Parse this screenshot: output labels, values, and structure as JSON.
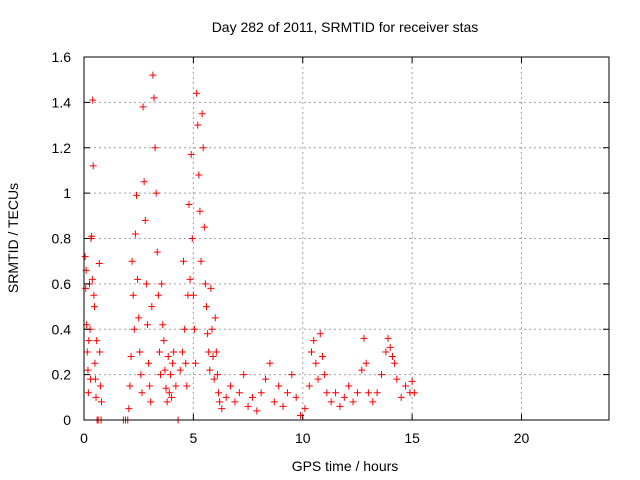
{
  "chart_data": {
    "type": "scatter",
    "title": "Day 282 of 2011, SRMTID for receiver stas",
    "xlabel": "GPS time / hours",
    "ylabel": "SRMTID / TECUs",
    "xlim": [
      0,
      24
    ],
    "ylim": [
      0,
      1.6
    ],
    "xticks": [
      "0",
      "5",
      "10",
      "15",
      "20"
    ],
    "yticks": [
      "0",
      "0.2",
      "0.4",
      "0.6",
      "0.8",
      "1",
      "1.2",
      "1.4",
      "1.6"
    ],
    "xtick_values": [
      0,
      5,
      10,
      15,
      20
    ],
    "ytick_values": [
      0,
      0.2,
      0.4,
      0.6,
      0.8,
      1.0,
      1.2,
      1.4,
      1.6
    ],
    "grid": true,
    "marker": "plus",
    "series_color": "#ff0000",
    "series": [
      {
        "name": "SRMTID",
        "points": [
          [
            0.05,
            0.72
          ],
          [
            0.08,
            0.58
          ],
          [
            0.1,
            0.66
          ],
          [
            0.12,
            0.42
          ],
          [
            0.15,
            0.3
          ],
          [
            0.18,
            0.22
          ],
          [
            0.2,
            0.12
          ],
          [
            0.22,
            0.35
          ],
          [
            0.25,
            0.6
          ],
          [
            0.28,
            0.4
          ],
          [
            0.3,
            0.18
          ],
          [
            0.32,
            0.8
          ],
          [
            0.35,
            0.81
          ],
          [
            0.38,
            0.62
          ],
          [
            0.4,
            1.41
          ],
          [
            0.42,
            1.12
          ],
          [
            0.45,
            0.55
          ],
          [
            0.48,
            0.5
          ],
          [
            0.5,
            0.25
          ],
          [
            0.52,
            0.18
          ],
          [
            0.55,
            0.1
          ],
          [
            0.58,
            0.35
          ],
          [
            0.6,
            0.0
          ],
          [
            0.65,
            0.0
          ],
          [
            0.7,
            0.69
          ],
          [
            0.72,
            0.3
          ],
          [
            0.75,
            0.15
          ],
          [
            0.78,
            0.0
          ],
          [
            0.8,
            0.08
          ],
          [
            1.8,
            0.0
          ],
          [
            1.9,
            0.0
          ],
          [
            2.0,
            0.0
          ],
          [
            2.05,
            0.05
          ],
          [
            2.1,
            0.15
          ],
          [
            2.15,
            0.28
          ],
          [
            2.2,
            0.7
          ],
          [
            2.25,
            0.55
          ],
          [
            2.3,
            0.4
          ],
          [
            2.35,
            0.82
          ],
          [
            2.4,
            0.99
          ],
          [
            2.45,
            0.62
          ],
          [
            2.5,
            0.45
          ],
          [
            2.55,
            0.3
          ],
          [
            2.6,
            0.2
          ],
          [
            2.65,
            0.12
          ],
          [
            2.7,
            1.38
          ],
          [
            2.75,
            1.05
          ],
          [
            2.8,
            0.88
          ],
          [
            2.85,
            0.6
          ],
          [
            2.9,
            0.42
          ],
          [
            2.95,
            0.25
          ],
          [
            3.0,
            0.15
          ],
          [
            3.05,
            0.08
          ],
          [
            3.1,
            0.5
          ],
          [
            3.15,
            1.52
          ],
          [
            3.2,
            1.42
          ],
          [
            3.25,
            1.2
          ],
          [
            3.3,
            1.0
          ],
          [
            3.35,
            0.74
          ],
          [
            3.4,
            0.55
          ],
          [
            3.45,
            0.3
          ],
          [
            3.5,
            0.2
          ],
          [
            3.55,
            0.6
          ],
          [
            3.6,
            0.42
          ],
          [
            3.65,
            0.35
          ],
          [
            3.7,
            0.22
          ],
          [
            3.75,
            0.14
          ],
          [
            3.8,
            0.08
          ],
          [
            3.85,
            0.28
          ],
          [
            3.9,
            0.12
          ],
          [
            3.95,
            0.2
          ],
          [
            4.0,
            0.1
          ],
          [
            4.05,
            0.25
          ],
          [
            4.1,
            0.3
          ],
          [
            4.2,
            0.15
          ],
          [
            4.3,
            0.0
          ],
          [
            4.4,
            0.22
          ],
          [
            4.5,
            0.3
          ],
          [
            4.55,
            0.7
          ],
          [
            4.6,
            0.4
          ],
          [
            4.65,
            0.25
          ],
          [
            4.7,
            0.15
          ],
          [
            4.75,
            0.55
          ],
          [
            4.8,
            0.95
          ],
          [
            4.85,
            0.62
          ],
          [
            4.9,
            1.17
          ],
          [
            4.95,
            0.8
          ],
          [
            5.0,
            0.55
          ],
          [
            5.05,
            0.4
          ],
          [
            5.1,
            0.25
          ],
          [
            5.15,
            1.44
          ],
          [
            5.2,
            1.3
          ],
          [
            5.25,
            1.08
          ],
          [
            5.3,
            0.92
          ],
          [
            5.35,
            0.7
          ],
          [
            5.4,
            1.35
          ],
          [
            5.45,
            1.2
          ],
          [
            5.5,
            0.85
          ],
          [
            5.55,
            0.6
          ],
          [
            5.6,
            0.5
          ],
          [
            5.65,
            0.38
          ],
          [
            5.7,
            0.3
          ],
          [
            5.75,
            0.22
          ],
          [
            5.8,
            0.58
          ],
          [
            5.85,
            0.4
          ],
          [
            5.9,
            0.28
          ],
          [
            5.95,
            0.18
          ],
          [
            6.0,
            0.45
          ],
          [
            6.05,
            0.3
          ],
          [
            6.1,
            0.2
          ],
          [
            6.15,
            0.12
          ],
          [
            6.2,
            0.08
          ],
          [
            6.3,
            0.05
          ],
          [
            6.5,
            0.1
          ],
          [
            6.7,
            0.15
          ],
          [
            6.9,
            0.08
          ],
          [
            7.1,
            0.12
          ],
          [
            7.3,
            0.2
          ],
          [
            7.5,
            0.06
          ],
          [
            7.7,
            0.1
          ],
          [
            7.9,
            0.04
          ],
          [
            8.1,
            0.12
          ],
          [
            8.3,
            0.18
          ],
          [
            8.5,
            0.25
          ],
          [
            8.7,
            0.08
          ],
          [
            8.9,
            0.15
          ],
          [
            9.1,
            0.06
          ],
          [
            9.3,
            0.12
          ],
          [
            9.5,
            0.2
          ],
          [
            9.7,
            0.1
          ],
          [
            9.9,
            0.02
          ],
          [
            10.1,
            0.05
          ],
          [
            10.3,
            0.15
          ],
          [
            10.4,
            0.3
          ],
          [
            10.5,
            0.35
          ],
          [
            10.6,
            0.25
          ],
          [
            10.7,
            0.18
          ],
          [
            10.8,
            0.38
          ],
          [
            10.9,
            0.28
          ],
          [
            11.0,
            0.2
          ],
          [
            11.1,
            0.12
          ],
          [
            11.3,
            0.08
          ],
          [
            11.5,
            0.12
          ],
          [
            11.7,
            0.06
          ],
          [
            11.9,
            0.1
          ],
          [
            12.1,
            0.15
          ],
          [
            12.3,
            0.08
          ],
          [
            12.5,
            0.12
          ],
          [
            12.7,
            0.22
          ],
          [
            12.8,
            0.36
          ],
          [
            12.9,
            0.25
          ],
          [
            13.0,
            0.12
          ],
          [
            13.2,
            0.08
          ],
          [
            13.4,
            0.12
          ],
          [
            13.6,
            0.2
          ],
          [
            13.8,
            0.3
          ],
          [
            13.9,
            0.36
          ],
          [
            14.0,
            0.32
          ],
          [
            14.1,
            0.28
          ],
          [
            14.2,
            0.25
          ],
          [
            14.3,
            0.18
          ],
          [
            14.5,
            0.1
          ],
          [
            14.7,
            0.15
          ],
          [
            14.9,
            0.12
          ],
          [
            15.0,
            0.17
          ],
          [
            15.1,
            0.12
          ]
        ]
      }
    ]
  }
}
